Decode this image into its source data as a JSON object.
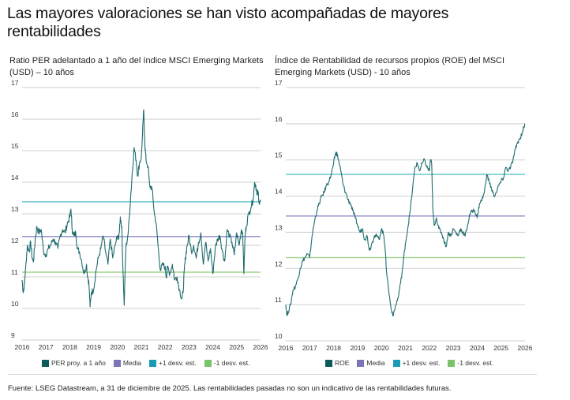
{
  "title": "Las mayores valoraciones se han visto acompañadas de mayores rentabilidades",
  "footer": "Fuente: LSEG Datastream, a 31 de diciembre de 2025. Las rentabilidades pasadas no son un indicativo de las rentabilidades futuras.",
  "colors": {
    "line": "#1f6b6e",
    "mean": "#8f8ac4",
    "plus1": "#5bc0cf",
    "minus1": "#9fd389",
    "grid": "#cfcfcf",
    "swatch_line": "#0c5a5a",
    "swatch_mean": "#7b74b8",
    "swatch_plus": "#1a9bb5",
    "swatch_minus": "#7cc26a"
  },
  "chart_data": [
    {
      "type": "line",
      "title": "Ratio PER adelantado a 1 año del índice MSCI Emerging Markets (USD) – 10 años",
      "xlabel": "",
      "ylabel": "",
      "xlim": [
        2016,
        2026
      ],
      "ylim": [
        9,
        17
      ],
      "yticks": [
        "9",
        "10",
        "11",
        "12",
        "13",
        "14",
        "15",
        "16",
        "17"
      ],
      "xticks": [
        "2016",
        "2017",
        "2018",
        "2019",
        "2020",
        "2021",
        "2022",
        "2023",
        "2024",
        "2025",
        "2026"
      ],
      "grid": true,
      "legend_position": "bottom",
      "legend": [
        "PER proy. a 1 año",
        "Media",
        "+1 desv. est.",
        "-1 desv. est."
      ],
      "reference_lines": {
        "mean": 12.28,
        "plus1": 13.38,
        "minus1": 11.15
      },
      "series": [
        {
          "name": "PER proy. a 1 año",
          "x": [
            2016.0,
            2016.05,
            2016.1,
            2016.15,
            2016.22,
            2016.3,
            2016.36,
            2016.42,
            2016.48,
            2016.55,
            2016.62,
            2016.7,
            2016.8,
            2016.9,
            2017.0,
            2017.1,
            2017.2,
            2017.3,
            2017.4,
            2017.5,
            2017.6,
            2017.7,
            2017.8,
            2017.9,
            2018.0,
            2018.05,
            2018.1,
            2018.18,
            2018.25,
            2018.32,
            2018.4,
            2018.5,
            2018.6,
            2018.7,
            2018.75,
            2018.8,
            2018.85,
            2018.9,
            2019.0,
            2019.1,
            2019.2,
            2019.3,
            2019.4,
            2019.5,
            2019.6,
            2019.7,
            2019.8,
            2019.9,
            2020.0,
            2020.05,
            2020.12,
            2020.18,
            2020.22,
            2020.28,
            2020.35,
            2020.45,
            2020.55,
            2020.62,
            2020.7,
            2020.78,
            2020.85,
            2020.92,
            2021.0,
            2021.05,
            2021.1,
            2021.15,
            2021.2,
            2021.28,
            2021.35,
            2021.45,
            2021.55,
            2021.62,
            2021.7,
            2021.8,
            2021.9,
            2022.0,
            2022.05,
            2022.1,
            2022.2,
            2022.3,
            2022.4,
            2022.5,
            2022.6,
            2022.7,
            2022.75,
            2022.8,
            2022.85,
            2022.9,
            2023.0,
            2023.1,
            2023.2,
            2023.3,
            2023.4,
            2023.5,
            2023.6,
            2023.7,
            2023.8,
            2023.9,
            2024.0,
            2024.1,
            2024.2,
            2024.3,
            2024.4,
            2024.5,
            2024.6,
            2024.7,
            2024.8,
            2024.9,
            2025.0,
            2025.1,
            2025.2,
            2025.25,
            2025.3,
            2025.35,
            2025.4,
            2025.5,
            2025.6,
            2025.7,
            2025.75,
            2025.8,
            2025.85,
            2025.9,
            2025.95,
            2026.0
          ],
          "values": [
            10.9,
            10.5,
            10.8,
            11.3,
            12.0,
            11.8,
            12.1,
            11.6,
            11.5,
            12.2,
            12.6,
            12.4,
            12.5,
            11.8,
            11.7,
            11.9,
            12.0,
            12.2,
            12.1,
            11.9,
            12.3,
            12.5,
            12.4,
            12.7,
            12.9,
            13.15,
            12.5,
            12.3,
            12.4,
            11.9,
            11.8,
            11.5,
            11.1,
            11.4,
            11.0,
            10.8,
            10.05,
            10.5,
            10.6,
            11.2,
            11.6,
            11.9,
            12.3,
            11.8,
            11.4,
            12.2,
            11.6,
            12.0,
            12.3,
            12.2,
            12.9,
            12.6,
            11.5,
            10.1,
            11.9,
            12.4,
            13.5,
            14.3,
            15.1,
            14.7,
            14.2,
            14.6,
            14.8,
            15.5,
            16.3,
            15.2,
            14.7,
            14.5,
            13.9,
            13.8,
            13.0,
            12.7,
            12.0,
            11.2,
            11.4,
            11.3,
            11.0,
            11.3,
            11.1,
            11.4,
            10.9,
            11.0,
            10.6,
            10.3,
            10.5,
            11.2,
            11.6,
            11.9,
            12.3,
            11.8,
            12.0,
            11.6,
            12.1,
            12.4,
            11.4,
            12.1,
            11.5,
            11.9,
            11.1,
            11.9,
            12.2,
            12.3,
            11.8,
            11.5,
            12.5,
            12.3,
            12.1,
            11.7,
            12.4,
            12.0,
            12.5,
            12.4,
            11.1,
            12.3,
            12.6,
            13.0,
            13.2,
            13.5,
            14.0,
            13.9,
            13.6,
            13.7,
            13.3,
            13.4
          ]
        }
      ]
    },
    {
      "type": "line",
      "title": "Índice de Rentabilidad de recursos propios (ROE) del MSCI Emerging Markets (USD) - 10 años",
      "xlabel": "",
      "ylabel": "",
      "xlim": [
        2016,
        2026
      ],
      "ylim": [
        10,
        17
      ],
      "yticks": [
        "10",
        "11",
        "12",
        "13",
        "14",
        "15",
        "16",
        "17"
      ],
      "xticks": [
        "2016",
        "2017",
        "2018",
        "2019",
        "2020",
        "2021",
        "2022",
        "2023",
        "2024",
        "2025",
        "2026"
      ],
      "grid": true,
      "legend_position": "bottom",
      "legend": [
        "ROE",
        "Media",
        "+1 desv. est.",
        "-1 desv. est."
      ],
      "reference_lines": {
        "mean": 13.45,
        "plus1": 14.6,
        "minus1": 12.3
      },
      "series": [
        {
          "name": "ROE",
          "x": [
            2016.0,
            2016.05,
            2016.1,
            2016.2,
            2016.3,
            2016.4,
            2016.5,
            2016.6,
            2016.7,
            2016.8,
            2016.9,
            2017.0,
            2017.1,
            2017.2,
            2017.3,
            2017.4,
            2017.5,
            2017.6,
            2017.7,
            2017.8,
            2017.9,
            2018.0,
            2018.05,
            2018.1,
            2018.15,
            2018.2,
            2018.3,
            2018.4,
            2018.5,
            2018.6,
            2018.7,
            2018.8,
            2018.9,
            2019.0,
            2019.1,
            2019.2,
            2019.3,
            2019.4,
            2019.5,
            2019.6,
            2019.7,
            2019.8,
            2019.9,
            2020.0,
            2020.1,
            2020.15,
            2020.2,
            2020.3,
            2020.4,
            2020.5,
            2020.6,
            2020.7,
            2020.8,
            2020.9,
            2021.0,
            2021.1,
            2021.2,
            2021.3,
            2021.4,
            2021.5,
            2021.6,
            2021.7,
            2021.8,
            2021.9,
            2022.0,
            2022.05,
            2022.1,
            2022.15,
            2022.2,
            2022.3,
            2022.4,
            2022.5,
            2022.6,
            2022.7,
            2022.8,
            2022.9,
            2023.0,
            2023.1,
            2023.2,
            2023.3,
            2023.4,
            2023.5,
            2023.6,
            2023.7,
            2023.8,
            2023.9,
            2024.0,
            2024.1,
            2024.2,
            2024.3,
            2024.4,
            2024.5,
            2024.6,
            2024.7,
            2024.8,
            2024.9,
            2025.0,
            2025.1,
            2025.2,
            2025.3,
            2025.4,
            2025.5,
            2025.6,
            2025.7,
            2025.8,
            2025.9,
            2025.95,
            2026.0
          ],
          "values": [
            11.0,
            10.7,
            10.8,
            11.0,
            11.4,
            11.5,
            11.7,
            12.0,
            12.2,
            12.3,
            12.4,
            12.3,
            12.9,
            13.3,
            13.6,
            13.8,
            14.0,
            14.1,
            14.3,
            14.4,
            14.6,
            14.9,
            15.1,
            15.2,
            15.15,
            15.0,
            14.7,
            14.3,
            14.1,
            13.9,
            13.8,
            13.6,
            13.4,
            13.2,
            13.0,
            13.1,
            12.8,
            12.9,
            12.5,
            12.7,
            12.9,
            12.9,
            12.8,
            13.1,
            12.9,
            12.6,
            12.0,
            11.4,
            10.9,
            10.7,
            11.0,
            11.2,
            11.6,
            12.1,
            12.7,
            13.1,
            13.6,
            14.2,
            14.8,
            14.9,
            14.7,
            14.9,
            15.0,
            14.8,
            14.7,
            15.0,
            14.9,
            13.6,
            13.2,
            13.4,
            13.1,
            13.0,
            12.8,
            12.6,
            13.0,
            12.9,
            13.1,
            13.0,
            12.9,
            13.1,
            13.0,
            12.9,
            13.2,
            13.5,
            13.6,
            13.6,
            13.4,
            13.8,
            13.9,
            14.1,
            14.6,
            14.4,
            14.2,
            14.0,
            14.1,
            14.3,
            14.4,
            14.5,
            14.8,
            14.7,
            14.8,
            15.0,
            15.3,
            15.5,
            15.6,
            15.8,
            15.9,
            16.0
          ]
        }
      ]
    }
  ]
}
